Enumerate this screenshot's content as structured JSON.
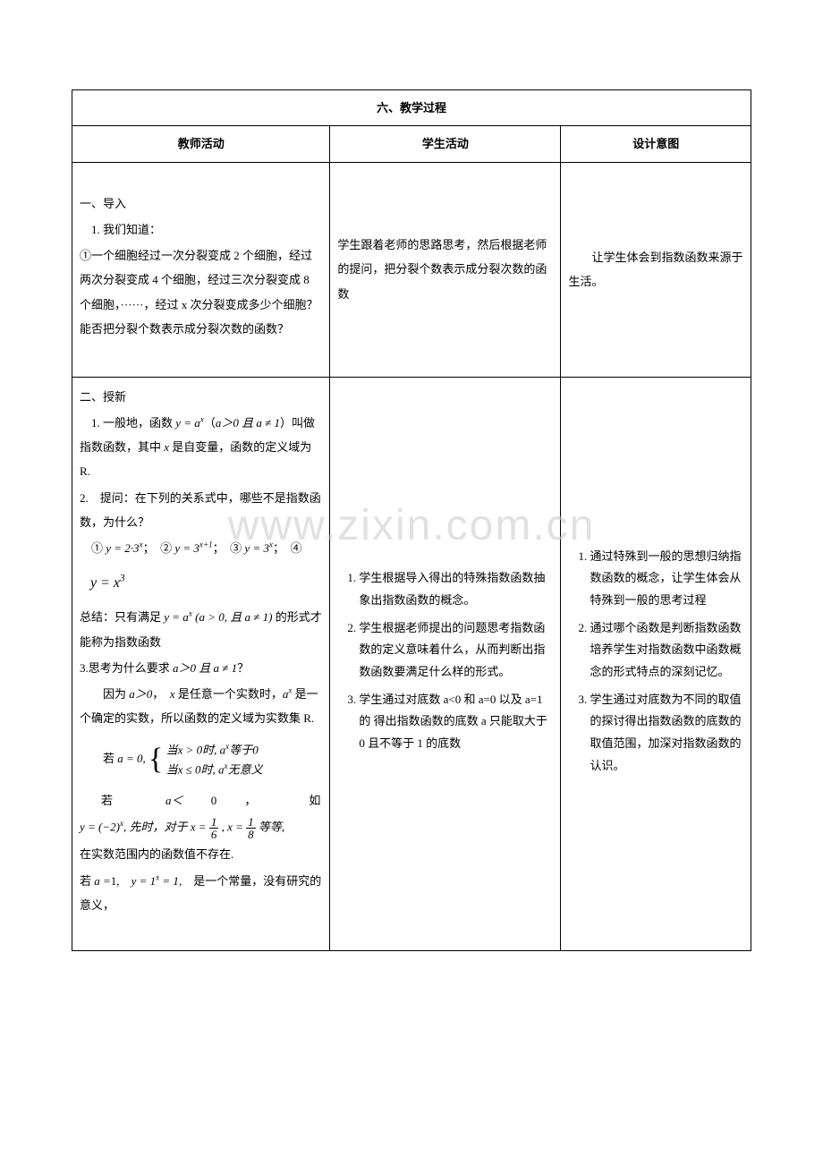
{
  "section_title": "六、教学过程",
  "headers": {
    "teacher": "教师活动",
    "student": "学生活动",
    "intent": "设计意图"
  },
  "row1": {
    "teacher": {
      "h": "一、导入",
      "p1": "　1. 我们知道：",
      "p2": "①一个细胞经过一次分裂变成 2 个细胞，经过两次分裂变成 4 个细胞，经过三次分裂变成 8 个细胞，······，经过 x 次分裂变成多少个细胞？能否把分裂个数表示成分裂次数的函数？"
    },
    "student": "学生跟着老师的思路思考，然后根据老师的提问，把分裂个数表示成分裂次数的函数",
    "intent": "　　让学生体会到指数函数来源于生活。"
  },
  "row2": {
    "teacher": {
      "h": "二、授新",
      "p1_a": "　1. 一般地，函数 ",
      "p1_math": "y = a<sup>x</sup>",
      "p1_b": "（",
      "p1_cond": "a＞0 且 a ≠ 1",
      "p1_c": "）叫做指数函数，其中 ",
      "p1_x": "x",
      "p1_d": " 是自变量，函数的定义域为 R.",
      "p2": "2.　提问：在下列的关系式中，哪些不是指数函数，为什么？",
      "opts_a": "　① ",
      "opt1": "y = 2·3<sup>x</sup>",
      "opts_b": "；　② ",
      "opt2": "y = 3<sup>x+1</sup>",
      "opts_c": "；　③ ",
      "opt3": "y = 3<sup>x</sup>",
      "opts_d": "；　④",
      "opt4": "y = x<sup>3</sup>",
      "sum_a": "总结：只有满足 ",
      "sum_math": "y = a<sup>x</sup> (a > 0, 且 a ≠ 1)",
      "sum_b": " 的形式才能称为指数函数",
      "p3_a": "3.思考为什么要求 ",
      "p3_cond": "a＞0 且 a ≠ 1",
      "p3_b": "？",
      "p4_a": "　　因为 ",
      "p4_a2": "a＞0",
      "p4_b": "，　",
      "p4_x": "x",
      "p4_c": " 是任意一个实数时，",
      "p4_ax": "a<sup>x</sup>",
      "p4_d": " 是一个确定的实数，所以函数的定义域为实数集 R.",
      "brace_pre_a": "　　若 ",
      "brace_pre_math": "a = 0",
      "brace_pre_b": ",",
      "brace_l1": "当x > 0时, a<sup>x</sup>等于0",
      "brace_l2": "当x ≤ 0时, a<sup>x</sup>无意义",
      "p5_a": "若",
      "p5_b": "a＜",
      "p5_c": "0",
      "p5_d": "，",
      "p5_e": "如",
      "p5line2": "y = (−2)<sup>x</sup>, 先时，对于 x = <span style=\"display:inline-block;vertical-align:middle;text-align:center;line-height:1;\"><span style=\"display:block;border-bottom:1px solid #000;padding:0 2px;\">1</span><span style=\"display:block;padding:0 2px;\">6</span></span> , x = <span style=\"display:inline-block;vertical-align:middle;text-align:center;line-height:1;\"><span style=\"display:block;border-bottom:1px solid #000;padding:0 2px;\">1</span><span style=\"display:block;padding:0 2px;\">8</span></span> 等等,",
      "p5line3": "在实数范围内的函数值不存在.",
      "p6_a": "若 ",
      "p6_a2": "a =",
      "p6_b": "1,　",
      "p6_math": "y = 1<sup>x</sup> = 1",
      "p6_c": ",　是一个常量，没有研究的意义，"
    },
    "student": {
      "i1": "学生根据导入得出的特殊指数函数抽象出指数函数的概念。",
      "i2": "学生根据老师提出的问题思考指数函数的定义意味着什么，从而判断出指数函数要满足什么样的形式。",
      "i3": "学生通过对底数 a<0 和 a=0 以及 a=1 的 得出指数函数的底数 a 只能取大于 0 且不等于 1 的底数"
    },
    "intent": {
      "i1": "通过特殊到一般的思想归纳指数函数的概念，让学生体会从特殊到一般的思考过程",
      "i2": "通过哪个函数是判断指数函数培养学生对指数函数中函数概念的形式特点的深刻记忆。",
      "i3": "学生通过对底数为不同的取值的探讨得出指数函数的底数的取值范围，加深对指数函数的认识。"
    }
  },
  "watermark": "www.zixin.com.cn"
}
